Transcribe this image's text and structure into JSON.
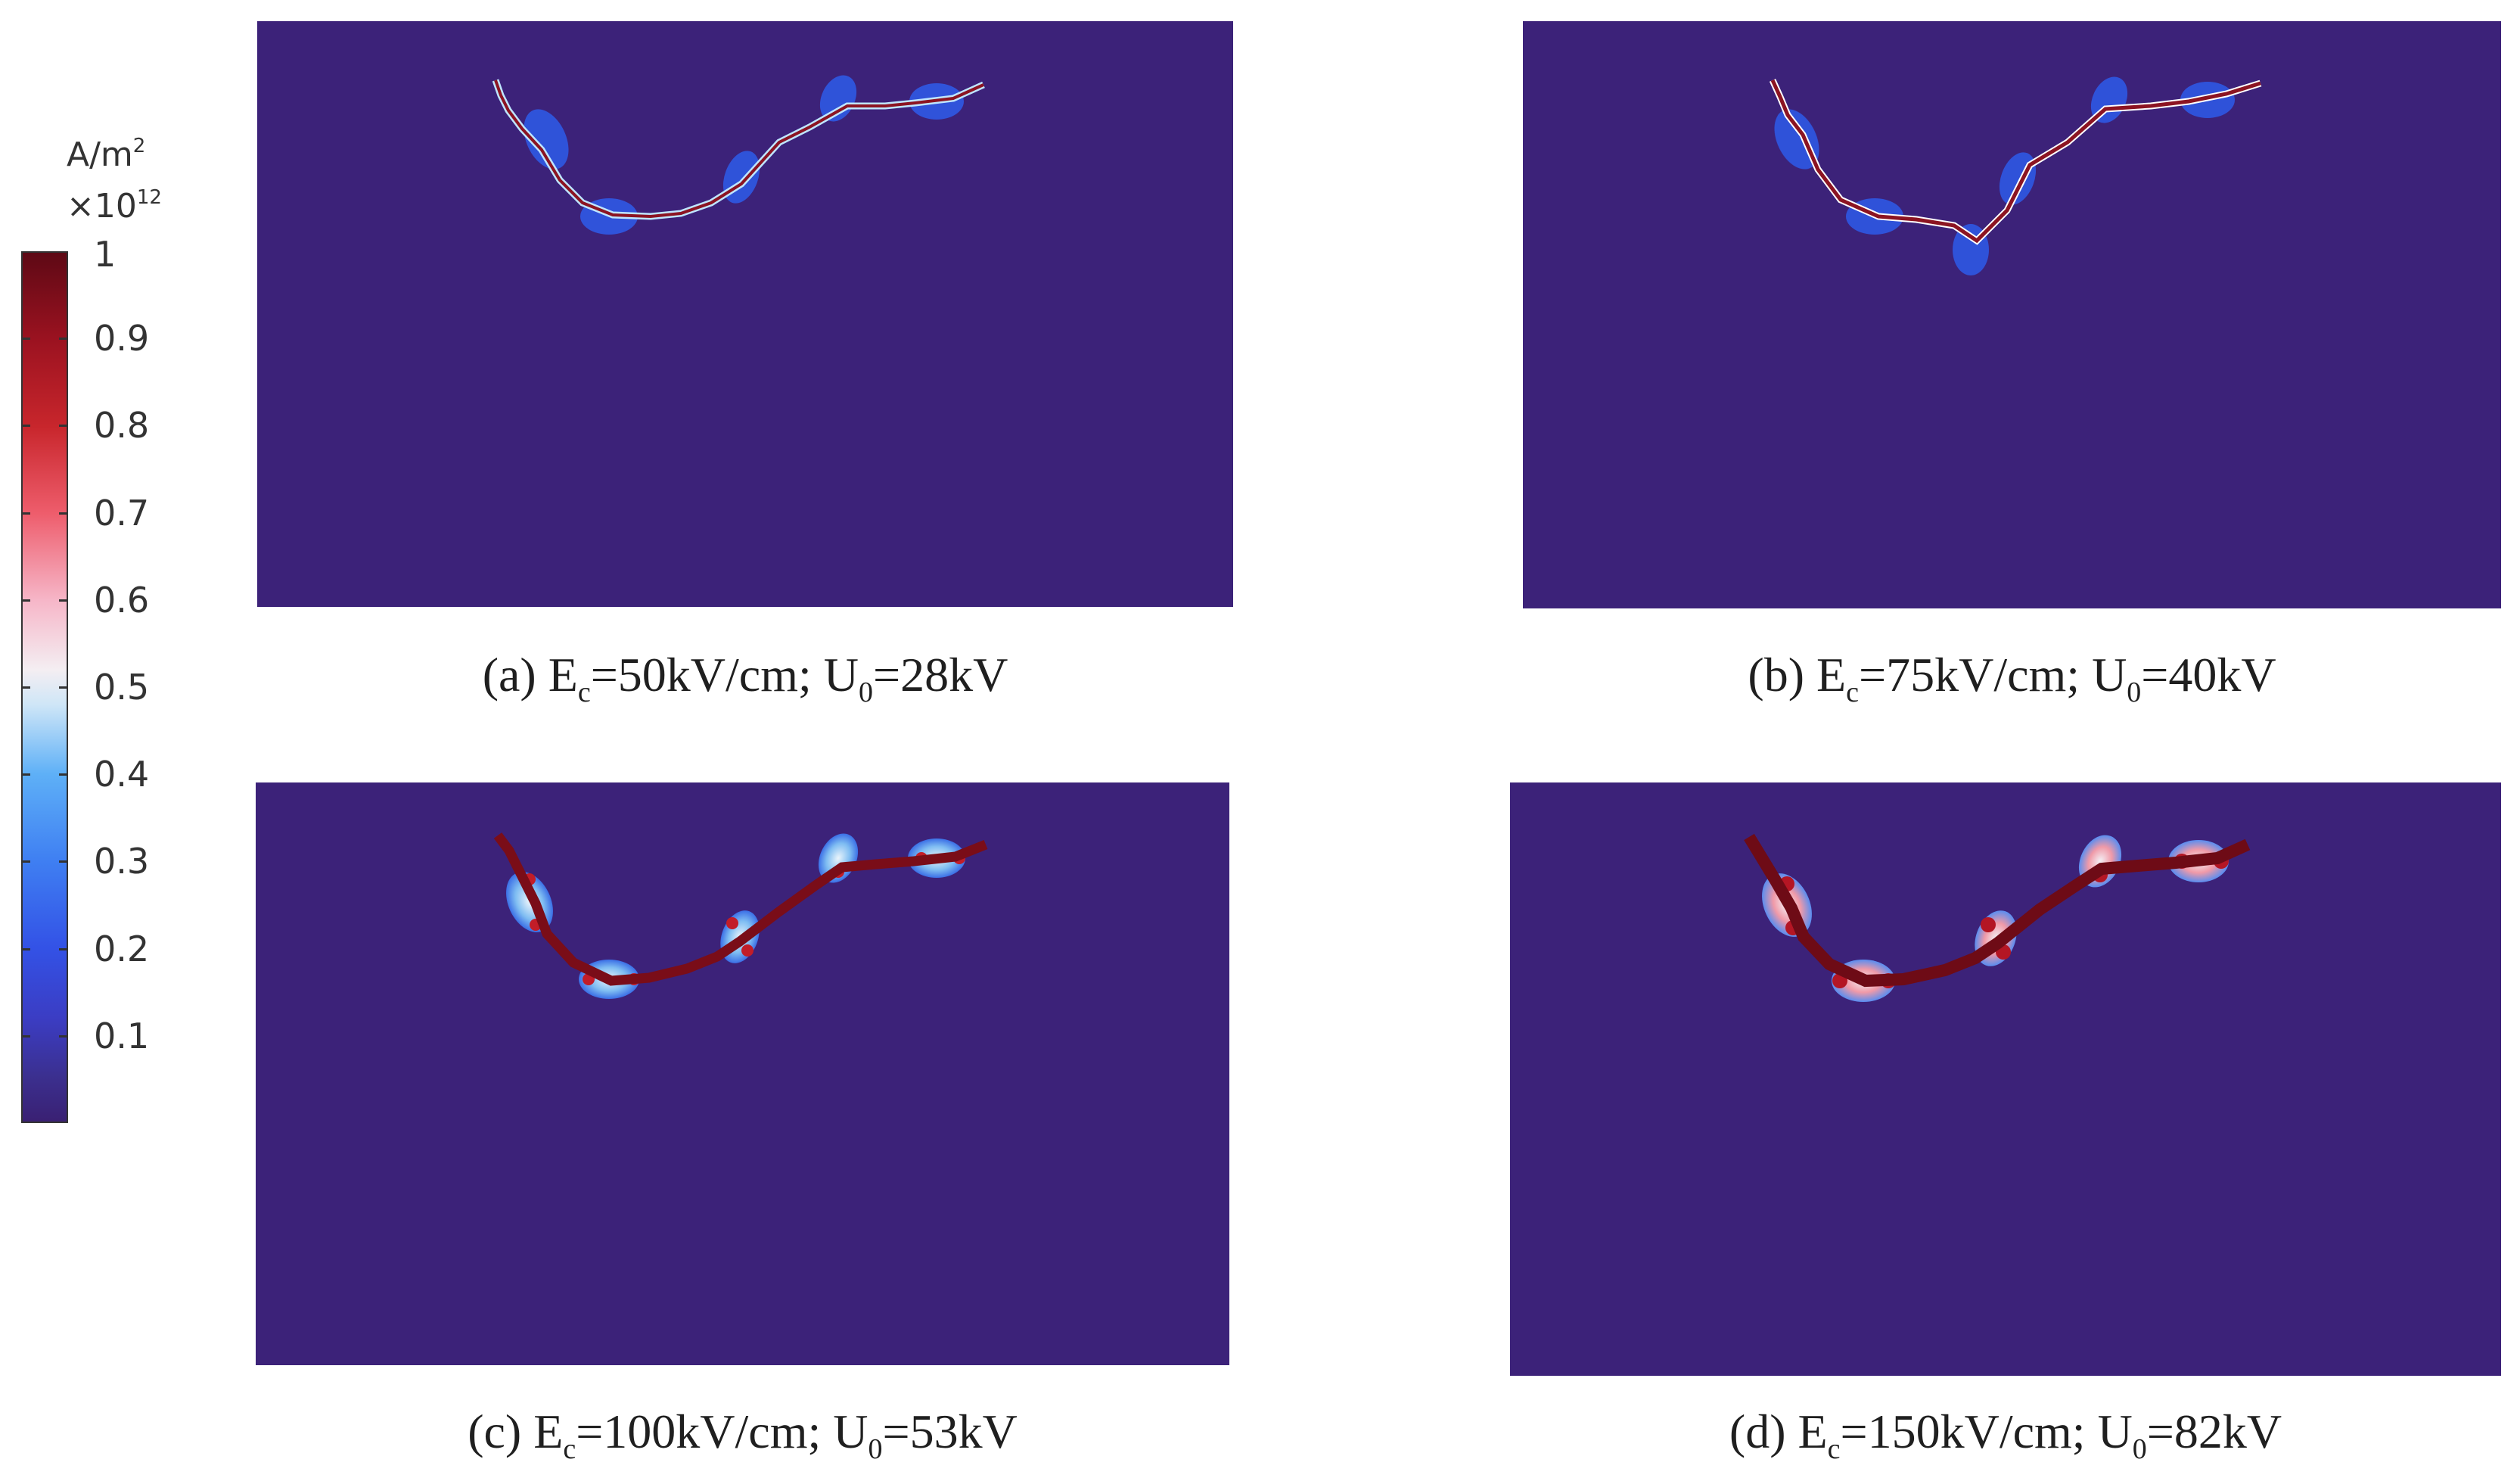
{
  "colorbar": {
    "unit_base": "A/m",
    "unit_exp": "2",
    "mult_base": "×10",
    "mult_exp": "12",
    "ticks": [
      "1",
      "0.9",
      "0.8",
      "0.7",
      "0.6",
      "0.5",
      "0.4",
      "0.3",
      "0.2",
      "0.1"
    ],
    "colors": {
      "low": "#3a2073",
      "mid": "#f4eef2",
      "high": "#5e0915"
    }
  },
  "panels": [
    {
      "id": "a",
      "caption": {
        "prefix": "(a) E",
        "sub1": "c",
        "mid": "=50kV/cm; U",
        "sub2": "0",
        "suffix": "=28kV"
      }
    },
    {
      "id": "b",
      "caption": {
        "prefix": "(b) E",
        "sub1": "c",
        "mid": "=75kV/cm; U",
        "sub2": "0",
        "suffix": "=40kV"
      }
    },
    {
      "id": "c",
      "caption": {
        "prefix": "(c) E",
        "sub1": "c",
        "mid": "=100kV/cm; U",
        "sub2": "0",
        "suffix": "=53kV"
      }
    },
    {
      "id": "d",
      "caption": {
        "prefix": "(d) E",
        "sub1": "c",
        "mid": "=150kV/cm; U",
        "sub2": "0",
        "suffix": "=82kV"
      }
    }
  ]
}
